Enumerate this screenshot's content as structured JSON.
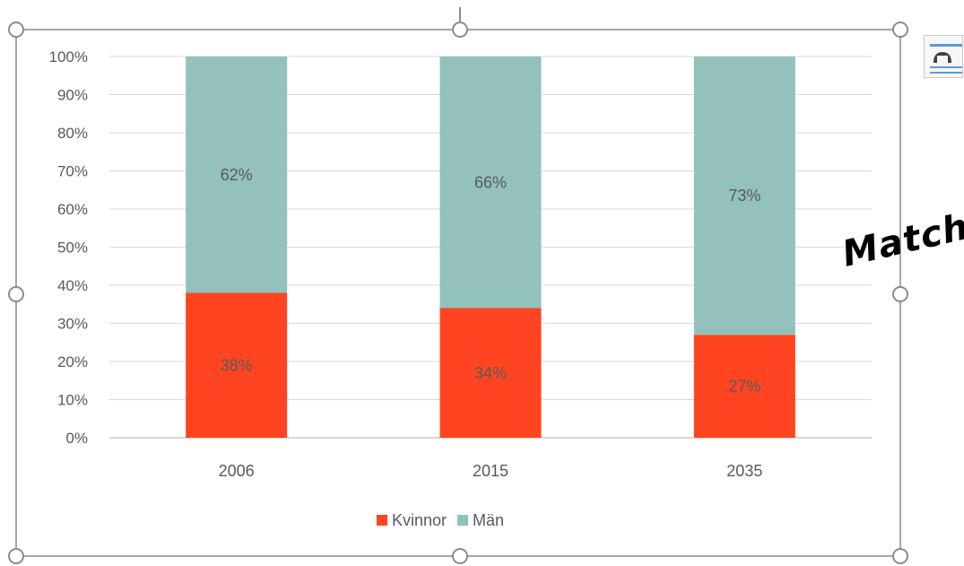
{
  "chart_data": {
    "type": "bar",
    "stacked": true,
    "categories": [
      "2006",
      "2015",
      "2035"
    ],
    "series": [
      {
        "name": "Kvinnor",
        "values": [
          38,
          34,
          27
        ],
        "labels": [
          "38%",
          "34%",
          "27%"
        ],
        "color": "#ff4422"
      },
      {
        "name": "Män",
        "values": [
          62,
          66,
          73
        ],
        "labels": [
          "62%",
          "66%",
          "73%"
        ],
        "color": "#93c1bb"
      }
    ],
    "ylim": [
      0,
      100
    ],
    "yticks": [
      "0%",
      "10%",
      "20%",
      "30%",
      "40%",
      "50%",
      "60%",
      "70%",
      "80%",
      "90%",
      "100%"
    ],
    "grid": true,
    "legend_position": "bottom",
    "title": "",
    "xlabel": "",
    "ylabel": ""
  },
  "overlay": {
    "text": "Match"
  },
  "icons": {
    "layout_options": "layout-options-icon"
  }
}
